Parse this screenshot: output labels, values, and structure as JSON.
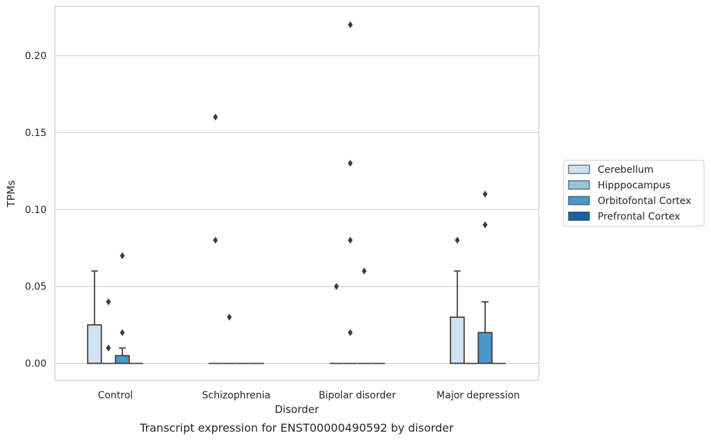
{
  "chart_data": {
    "type": "box",
    "title": "",
    "caption": "Transcript expression for ENST00000490592 by disorder",
    "xlabel": "Disorder",
    "ylabel": "TPMs",
    "ylim": [
      -0.011,
      0.232
    ],
    "yticks": [
      0.0,
      0.05,
      0.1,
      0.15,
      0.2
    ],
    "ytick_labels": [
      "0.00",
      "0.05",
      "0.10",
      "0.15",
      "0.20"
    ],
    "grid": true,
    "legend_position": "right",
    "categories": [
      "Control",
      "Schizophrenia",
      "Bipolar disorder",
      "Major depression"
    ],
    "series": [
      {
        "name": "Cerebellum",
        "color": "#d0e1f2",
        "boxes": [
          {
            "q1": 0.0,
            "median": 0.0,
            "q3": 0.025,
            "whisker_low": 0.0,
            "whisker_high": 0.06,
            "outliers": []
          },
          {
            "q1": 0.0,
            "median": 0.0,
            "q3": 0.0,
            "whisker_low": 0.0,
            "whisker_high": 0.0,
            "outliers": [
              0.16,
              0.08
            ]
          },
          {
            "q1": 0.0,
            "median": 0.0,
            "q3": 0.0,
            "whisker_low": 0.0,
            "whisker_high": 0.0,
            "outliers": [
              0.05
            ]
          },
          {
            "q1": 0.0,
            "median": 0.0,
            "q3": 0.03,
            "whisker_low": 0.0,
            "whisker_high": 0.06,
            "outliers": [
              0.08
            ]
          }
        ]
      },
      {
        "name": "Hipppocampus",
        "color": "#94c4df",
        "boxes": [
          {
            "q1": 0.0,
            "median": 0.0,
            "q3": 0.0,
            "whisker_low": 0.0,
            "whisker_high": 0.0,
            "outliers": [
              0.04,
              0.01
            ]
          },
          {
            "q1": 0.0,
            "median": 0.0,
            "q3": 0.0,
            "whisker_low": 0.0,
            "whisker_high": 0.0,
            "outliers": [
              0.03
            ]
          },
          {
            "q1": 0.0,
            "median": 0.0,
            "q3": 0.0,
            "whisker_low": 0.0,
            "whisker_high": 0.0,
            "outliers": [
              0.22,
              0.13,
              0.08,
              0.02
            ]
          },
          {
            "q1": 0.0,
            "median": 0.0,
            "q3": 0.0,
            "whisker_low": 0.0,
            "whisker_high": 0.0,
            "outliers": []
          }
        ]
      },
      {
        "name": "Orbitofontal Cortex",
        "color": "#4a98c9",
        "boxes": [
          {
            "q1": 0.0,
            "median": 0.0,
            "q3": 0.005,
            "whisker_low": 0.0,
            "whisker_high": 0.01,
            "outliers": [
              0.07,
              0.02
            ]
          },
          {
            "q1": 0.0,
            "median": 0.0,
            "q3": 0.0,
            "whisker_low": 0.0,
            "whisker_high": 0.0,
            "outliers": []
          },
          {
            "q1": 0.0,
            "median": 0.0,
            "q3": 0.0,
            "whisker_low": 0.0,
            "whisker_high": 0.0,
            "outliers": [
              0.06
            ]
          },
          {
            "q1": 0.0,
            "median": 0.0,
            "q3": 0.02,
            "whisker_low": 0.0,
            "whisker_high": 0.04,
            "outliers": [
              0.11,
              0.09
            ]
          }
        ]
      },
      {
        "name": "Prefrontal Cortex",
        "color": "#1764ab",
        "boxes": [
          {
            "q1": 0.0,
            "median": 0.0,
            "q3": 0.0,
            "whisker_low": 0.0,
            "whisker_high": 0.0,
            "outliers": []
          },
          {
            "q1": 0.0,
            "median": 0.0,
            "q3": 0.0,
            "whisker_low": 0.0,
            "whisker_high": 0.0,
            "outliers": []
          },
          {
            "q1": 0.0,
            "median": 0.0,
            "q3": 0.0,
            "whisker_low": 0.0,
            "whisker_high": 0.0,
            "outliers": []
          },
          {
            "q1": 0.0,
            "median": 0.0,
            "q3": 0.0,
            "whisker_low": 0.0,
            "whisker_high": 0.0,
            "outliers": []
          }
        ]
      }
    ]
  }
}
